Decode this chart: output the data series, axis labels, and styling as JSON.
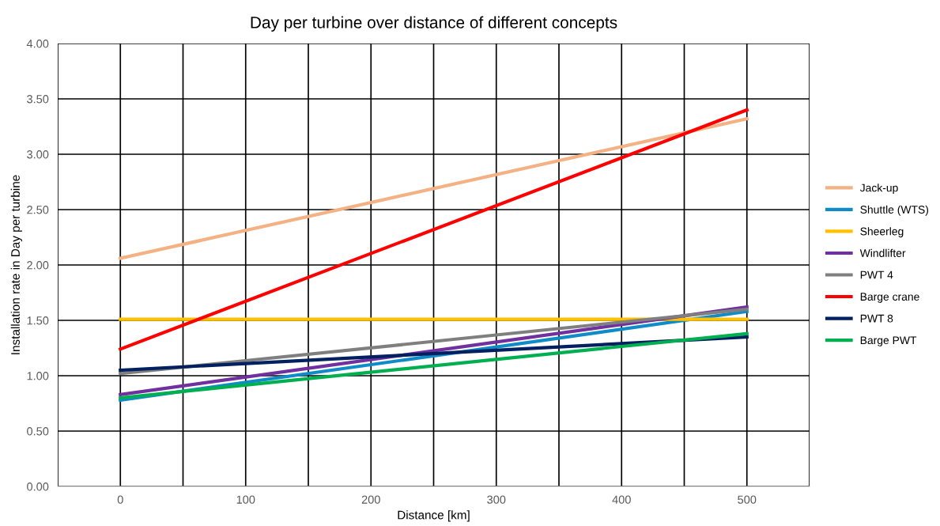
{
  "chart_data": {
    "type": "line",
    "title": "Day per turbine over distance of different concepts",
    "xlabel": "Distance [km]",
    "ylabel": "Installation rate in Day per turbine",
    "x": [
      0,
      500
    ],
    "series": [
      {
        "name": "Jack-up",
        "color": "#f4b183",
        "values": [
          2.06,
          3.32
        ]
      },
      {
        "name": "Shuttle (WTS)",
        "color": "#0f8cc8",
        "values": [
          0.78,
          1.58
        ]
      },
      {
        "name": "Sheerleg",
        "color": "#ffc000",
        "values": [
          1.51,
          1.51
        ]
      },
      {
        "name": "Windlifter",
        "color": "#7030a0",
        "values": [
          0.83,
          1.62
        ]
      },
      {
        "name": "PWT 4",
        "color": "#7f7f7f",
        "values": [
          1.02,
          1.6
        ]
      },
      {
        "name": "Barge crane",
        "color": "#ff0000",
        "values": [
          1.24,
          3.4
        ]
      },
      {
        "name": "PWT 8",
        "color": "#002060",
        "values": [
          1.05,
          1.35
        ]
      },
      {
        "name": "Barge PWT",
        "color": "#00b050",
        "values": [
          0.8,
          1.38
        ]
      }
    ],
    "xlim": [
      -50,
      550
    ],
    "xticks": [
      {
        "value": -50,
        "label": null
      },
      0,
      {
        "value": 50,
        "label": null
      },
      100,
      {
        "value": 150,
        "label": null
      },
      200,
      {
        "value": 250,
        "label": null
      },
      300,
      {
        "value": 350,
        "label": null
      },
      400,
      {
        "value": 450,
        "label": null
      },
      500,
      {
        "value": 550,
        "label": null
      }
    ],
    "ylim": [
      0,
      4
    ],
    "yticks": [
      {
        "value": 0,
        "label": "0.00"
      },
      {
        "value": 0.5,
        "label": "0.50"
      },
      {
        "value": 1,
        "label": "1.00"
      },
      {
        "value": 1.5,
        "label": "1.50"
      },
      {
        "value": 2,
        "label": "2.00"
      },
      {
        "value": 2.5,
        "label": "2.50"
      },
      {
        "value": 3,
        "label": "3.00"
      },
      {
        "value": 3.5,
        "label": "3.50"
      },
      {
        "value": 4,
        "label": "4.00"
      }
    ],
    "grid": true,
    "legend": "right",
    "marker": "none",
    "line_style": "solid"
  }
}
